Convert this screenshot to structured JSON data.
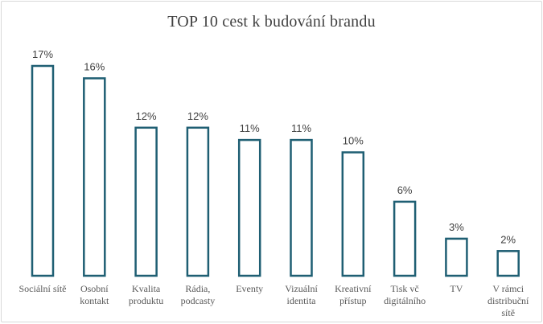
{
  "chart_data": {
    "type": "bar",
    "title": "TOP 10 cest k budování brandu",
    "xlabel": "",
    "ylabel": "",
    "ylim": [
      0,
      17
    ],
    "grid": false,
    "legend": "none",
    "bar_fill": "#ffffff",
    "bar_stroke": "#1f5f73",
    "categories": [
      [
        "Sociální sítě"
      ],
      [
        "Osobní",
        "kontakt"
      ],
      [
        "Kvalita",
        "produktu"
      ],
      [
        "Rádia,",
        "podcasty"
      ],
      [
        "Eventy"
      ],
      [
        "Vizuální",
        "identita"
      ],
      [
        "Kreativní",
        "přístup"
      ],
      [
        "Tisk vč",
        "digitálního"
      ],
      [
        "TV"
      ],
      [
        "V rámci",
        "distribuční",
        "sítě"
      ]
    ],
    "values": [
      17,
      16,
      12,
      12,
      11,
      11,
      10,
      6,
      3,
      2
    ],
    "data_labels": [
      "17%",
      "16%",
      "12%",
      "12%",
      "11%",
      "11%",
      "10%",
      "6%",
      "3%",
      "2%"
    ]
  }
}
